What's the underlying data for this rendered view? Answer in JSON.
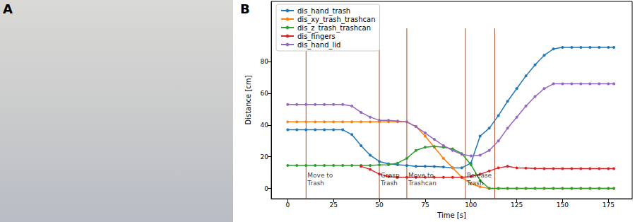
{
  "panel_labels": [
    "A",
    "B"
  ],
  "chart_data": {
    "type": "line",
    "x_label": "Time [s]",
    "y_label": "Distance [cm]",
    "xlim": [
      -9,
      188
    ],
    "ylim": [
      -6.5,
      118
    ],
    "xticks": [
      0,
      25,
      50,
      75,
      100,
      125,
      150,
      175
    ],
    "yticks": [
      0,
      20,
      40,
      60,
      80
    ],
    "grid": false,
    "legend": "upper left",
    "marker": "circle",
    "x": [
      0,
      5,
      10,
      15,
      20,
      25,
      30,
      35,
      40,
      45,
      50,
      55,
      60,
      65,
      70,
      75,
      80,
      85,
      90,
      95,
      100,
      105,
      110,
      115,
      120,
      125,
      130,
      135,
      140,
      145,
      150,
      155,
      160,
      165,
      170,
      175,
      178
    ],
    "series": [
      {
        "name": "dis_hand_trash",
        "color": "#1f77b4",
        "values": [
          37,
          37,
          37,
          37,
          37,
          37,
          37,
          34,
          27,
          21,
          17,
          15.5,
          15,
          14.5,
          14,
          14,
          13.8,
          13.5,
          13,
          13,
          16,
          33,
          38,
          46,
          55,
          63,
          71,
          78,
          84,
          88,
          89,
          89,
          89,
          89,
          89,
          89,
          89
        ]
      },
      {
        "name": "dis_xy_trash_trashcan",
        "color": "#ff7f0e",
        "values": [
          42,
          42,
          42,
          42,
          42,
          42,
          42,
          42,
          42,
          42,
          42,
          42,
          42,
          42,
          39,
          33,
          26,
          19,
          13,
          7,
          3,
          1,
          0,
          0,
          0,
          0,
          0,
          0,
          0,
          0,
          0,
          0,
          0,
          0,
          0,
          0,
          0
        ]
      },
      {
        "name": "dis_z_trash_trashcan",
        "color": "#2ca02c",
        "values": [
          14.5,
          14.5,
          14.5,
          14.5,
          14.5,
          14.5,
          14.5,
          14.5,
          14.5,
          14.5,
          14.8,
          15,
          16,
          19,
          24,
          26,
          26.5,
          26,
          25,
          22,
          15,
          5,
          0,
          0,
          0,
          0,
          0,
          0,
          0,
          0,
          0,
          0,
          0,
          0,
          0,
          0,
          0
        ]
      },
      {
        "name": "dis_fingers",
        "color": "#d62728",
        "values": [
          null,
          null,
          null,
          null,
          null,
          null,
          null,
          null,
          14,
          12,
          9,
          7.5,
          7,
          7,
          7,
          7,
          7,
          7,
          7,
          7,
          7.5,
          9,
          11,
          13,
          14,
          13,
          12.8,
          12.6,
          12.5,
          12.5,
          12.5,
          12.5,
          12.5,
          12.5,
          12.5,
          12.5,
          12.5
        ]
      },
      {
        "name": "dis_hand_lid",
        "color": "#9467bd",
        "values": [
          53,
          53,
          53,
          53,
          53,
          53,
          53,
          52,
          48,
          45,
          43,
          43,
          42.5,
          42,
          39,
          35,
          31,
          27,
          24,
          21.5,
          20.5,
          21,
          24,
          30,
          38,
          45,
          52,
          58,
          63,
          66,
          66,
          66,
          66,
          66,
          66,
          66,
          66
        ]
      }
    ],
    "events": {
      "color": "#a0522d",
      "x": [
        10,
        50,
        65,
        97,
        113
      ],
      "span": [
        -6.5,
        101
      ],
      "label_y": 6,
      "labels": [
        "Move to\nTrash",
        "Grasp\nTrash",
        "Move to\nTrashcan",
        "Release\nTrash",
        null
      ]
    }
  }
}
